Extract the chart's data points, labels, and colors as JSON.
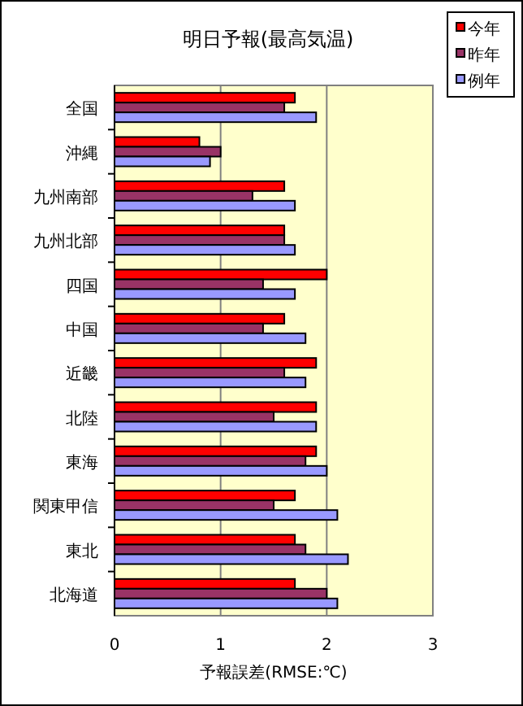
{
  "chart_data": {
    "type": "bar",
    "orientation": "horizontal",
    "title": "明日予報(最高気温)",
    "xlabel": "予報誤差(RMSE:℃)",
    "categories": [
      "全国",
      "沖縄",
      "九州南部",
      "九州北部",
      "四国",
      "中国",
      "近畿",
      "北陸",
      "東海",
      "関東甲信",
      "東北",
      "北海道"
    ],
    "series": [
      {
        "name": "今年",
        "color": "#ff0000",
        "values": [
          1.7,
          0.8,
          1.6,
          1.6,
          2.0,
          1.6,
          1.9,
          1.9,
          1.9,
          1.7,
          1.7,
          1.7
        ]
      },
      {
        "name": "昨年",
        "color": "#993366",
        "values": [
          1.6,
          1.0,
          1.3,
          1.6,
          1.4,
          1.4,
          1.6,
          1.5,
          1.8,
          1.5,
          1.8,
          2.0
        ]
      },
      {
        "name": "例年",
        "color": "#9999ff",
        "values": [
          1.9,
          0.9,
          1.7,
          1.7,
          1.7,
          1.8,
          1.8,
          1.9,
          2.0,
          2.1,
          2.2,
          2.1
        ]
      }
    ],
    "xlim": [
      0,
      3
    ],
    "xticks": [
      0,
      1,
      2,
      3
    ],
    "grid": "x",
    "legend": "top right"
  }
}
